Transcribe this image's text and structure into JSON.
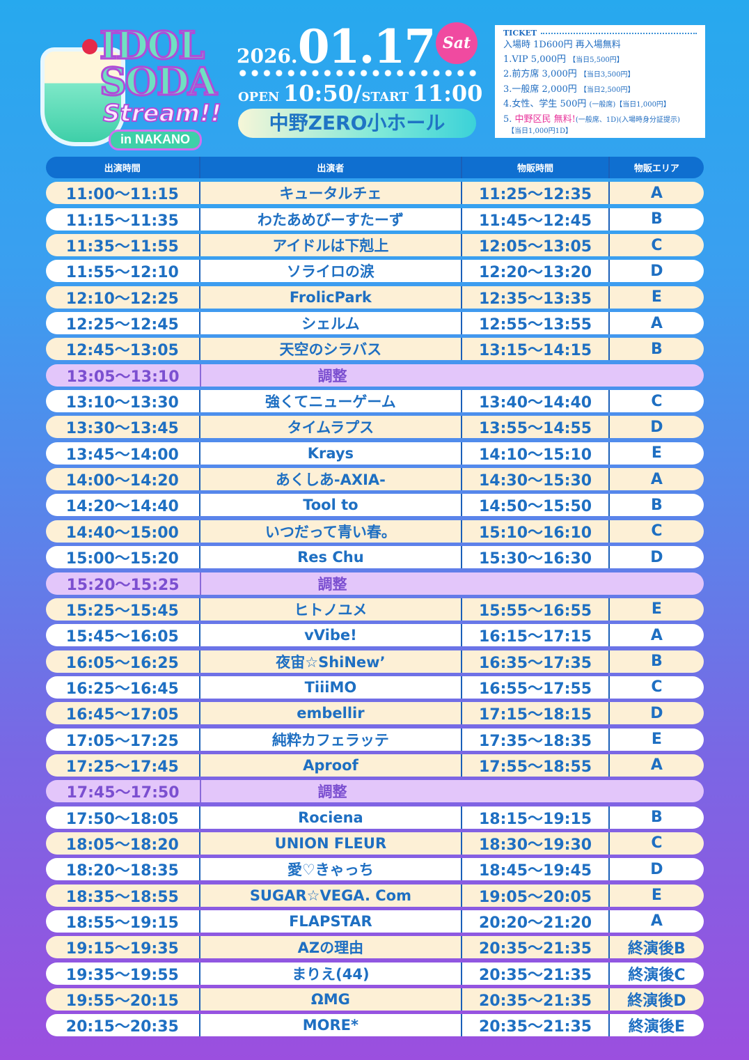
{
  "logo": {
    "line1": "IDOL",
    "line2": "SODA",
    "line3": "Stream!!",
    "line4": "in NAKANO"
  },
  "event": {
    "year": "2026.",
    "date": "01.17",
    "weekday": "Sat",
    "open_label": "OPEN",
    "open_time": "10:50",
    "sep": "/",
    "start_label": "START",
    "start_time": "11:00",
    "venue": "中野ZERO小ホール"
  },
  "ticket": {
    "heading": "TICKET",
    "entry": "入場時 1D600円 再入場無料",
    "lines": [
      {
        "main": "1.VIP 5,000円",
        "note": "【当日5,500円】"
      },
      {
        "main": "2.前方席 3,000円",
        "note": "【当日3,500円】"
      },
      {
        "main": "3.一般席 2,000円",
        "note": "【当日2,500円】"
      },
      {
        "main": "4.女性、学生 500円",
        "note": "(一般席)【当日1,000円】"
      }
    ],
    "line5_prefix": "5. ",
    "line5_highlight": "中野区民 無料!",
    "line5_note": "(一般席、1D)(入場時身分証提示)",
    "line5_sub": "【当日1,000円1D】"
  },
  "colors": {
    "cream": "#fdf0d6",
    "white": "#ffffff",
    "break": "#e3c6fa",
    "header": "#0f6fd0",
    "text": "#1e6fc2"
  },
  "table": {
    "headers": [
      "出演時間",
      "出演者",
      "物販時間",
      "物販エリア"
    ],
    "rows": [
      {
        "type": "cream",
        "time": "11:00〜11:15",
        "performer": "キュータルチェ",
        "merch": "11:25〜12:35",
        "area": "A"
      },
      {
        "type": "white",
        "time": "11:15〜11:35",
        "performer": "わたあめびーすたーず",
        "merch": "11:45〜12:45",
        "area": "B"
      },
      {
        "type": "cream",
        "time": "11:35〜11:55",
        "performer": "アイドルは下剋上",
        "merch": "12:05〜13:05",
        "area": "C"
      },
      {
        "type": "white",
        "time": "11:55〜12:10",
        "performer": "ソライロの涙",
        "merch": "12:20〜13:20",
        "area": "D"
      },
      {
        "type": "cream",
        "time": "12:10〜12:25",
        "performer": "FrolicPark",
        "merch": "12:35〜13:35",
        "area": "E"
      },
      {
        "type": "white",
        "time": "12:25〜12:45",
        "performer": "シェルム",
        "merch": "12:55〜13:55",
        "area": "A"
      },
      {
        "type": "cream",
        "time": "12:45〜13:05",
        "performer": "天空のシラバス",
        "merch": "13:15〜14:15",
        "area": "B"
      },
      {
        "type": "break",
        "time": "13:05〜13:10",
        "performer": "調整",
        "merch": "",
        "area": ""
      },
      {
        "type": "white",
        "time": "13:10〜13:30",
        "performer": "強くてニューゲーム",
        "merch": "13:40〜14:40",
        "area": "C"
      },
      {
        "type": "cream",
        "time": "13:30〜13:45",
        "performer": "タイムラプス",
        "merch": "13:55〜14:55",
        "area": "D"
      },
      {
        "type": "white",
        "time": "13:45〜14:00",
        "performer": "Krays",
        "merch": "14:10〜15:10",
        "area": "E"
      },
      {
        "type": "cream",
        "time": "14:00〜14:20",
        "performer": "あくしあ-AXIA-",
        "merch": "14:30〜15:30",
        "area": "A"
      },
      {
        "type": "white",
        "time": "14:20〜14:40",
        "performer": "Tool to",
        "merch": "14:50〜15:50",
        "area": "B"
      },
      {
        "type": "cream",
        "time": "14:40〜15:00",
        "performer": "いつだって青い春。",
        "merch": "15:10〜16:10",
        "area": "C"
      },
      {
        "type": "white",
        "time": "15:00〜15:20",
        "performer": "Res Chu",
        "merch": "15:30〜16:30",
        "area": "D"
      },
      {
        "type": "break",
        "time": "15:20〜15:25",
        "performer": "調整",
        "merch": "",
        "area": ""
      },
      {
        "type": "cream",
        "time": "15:25〜15:45",
        "performer": "ヒトノユメ",
        "merch": "15:55〜16:55",
        "area": "E"
      },
      {
        "type": "white",
        "time": "15:45〜16:05",
        "performer": "vVibe!",
        "merch": "16:15〜17:15",
        "area": "A"
      },
      {
        "type": "cream",
        "time": "16:05〜16:25",
        "performer": "夜宙☆ShiNew’",
        "merch": "16:35〜17:35",
        "area": "B"
      },
      {
        "type": "white",
        "time": "16:25〜16:45",
        "performer": "TiiiMO",
        "merch": "16:55〜17:55",
        "area": "C"
      },
      {
        "type": "cream",
        "time": "16:45〜17:05",
        "performer": "embellir",
        "merch": "17:15〜18:15",
        "area": "D"
      },
      {
        "type": "white",
        "time": "17:05〜17:25",
        "performer": "純粋カフェラッテ",
        "merch": "17:35〜18:35",
        "area": "E"
      },
      {
        "type": "cream",
        "time": "17:25〜17:45",
        "performer": "Aproof",
        "merch": "17:55〜18:55",
        "area": "A"
      },
      {
        "type": "break",
        "time": "17:45〜17:50",
        "performer": "調整",
        "merch": "",
        "area": ""
      },
      {
        "type": "white",
        "time": "17:50〜18:05",
        "performer": "Rociena",
        "merch": "18:15〜19:15",
        "area": "B"
      },
      {
        "type": "cream",
        "time": "18:05〜18:20",
        "performer": "UNION FLEUR",
        "merch": "18:30〜19:30",
        "area": "C"
      },
      {
        "type": "white",
        "time": "18:20〜18:35",
        "performer": "愛♡きゃっち",
        "merch": "18:45〜19:45",
        "area": "D"
      },
      {
        "type": "cream",
        "time": "18:35〜18:55",
        "performer": "SUGAR☆VEGA. Com",
        "merch": "19:05〜20:05",
        "area": "E"
      },
      {
        "type": "white",
        "time": "18:55〜19:15",
        "performer": "FLAPSTAR",
        "merch": "20:20〜21:20",
        "area": "A"
      },
      {
        "type": "cream",
        "time": "19:15〜19:35",
        "performer": "AZの理由",
        "merch": "20:35〜21:35",
        "area": "終演後B"
      },
      {
        "type": "white",
        "time": "19:35〜19:55",
        "performer": "まりえ(44)",
        "merch": "20:35〜21:35",
        "area": "終演後C"
      },
      {
        "type": "cream",
        "time": "19:55〜20:15",
        "performer": "ΩMG",
        "merch": "20:35〜21:35",
        "area": "終演後D"
      },
      {
        "type": "white",
        "time": "20:15〜20:35",
        "performer": "MORE*",
        "merch": "20:35〜21:35",
        "area": "終演後E"
      }
    ]
  }
}
